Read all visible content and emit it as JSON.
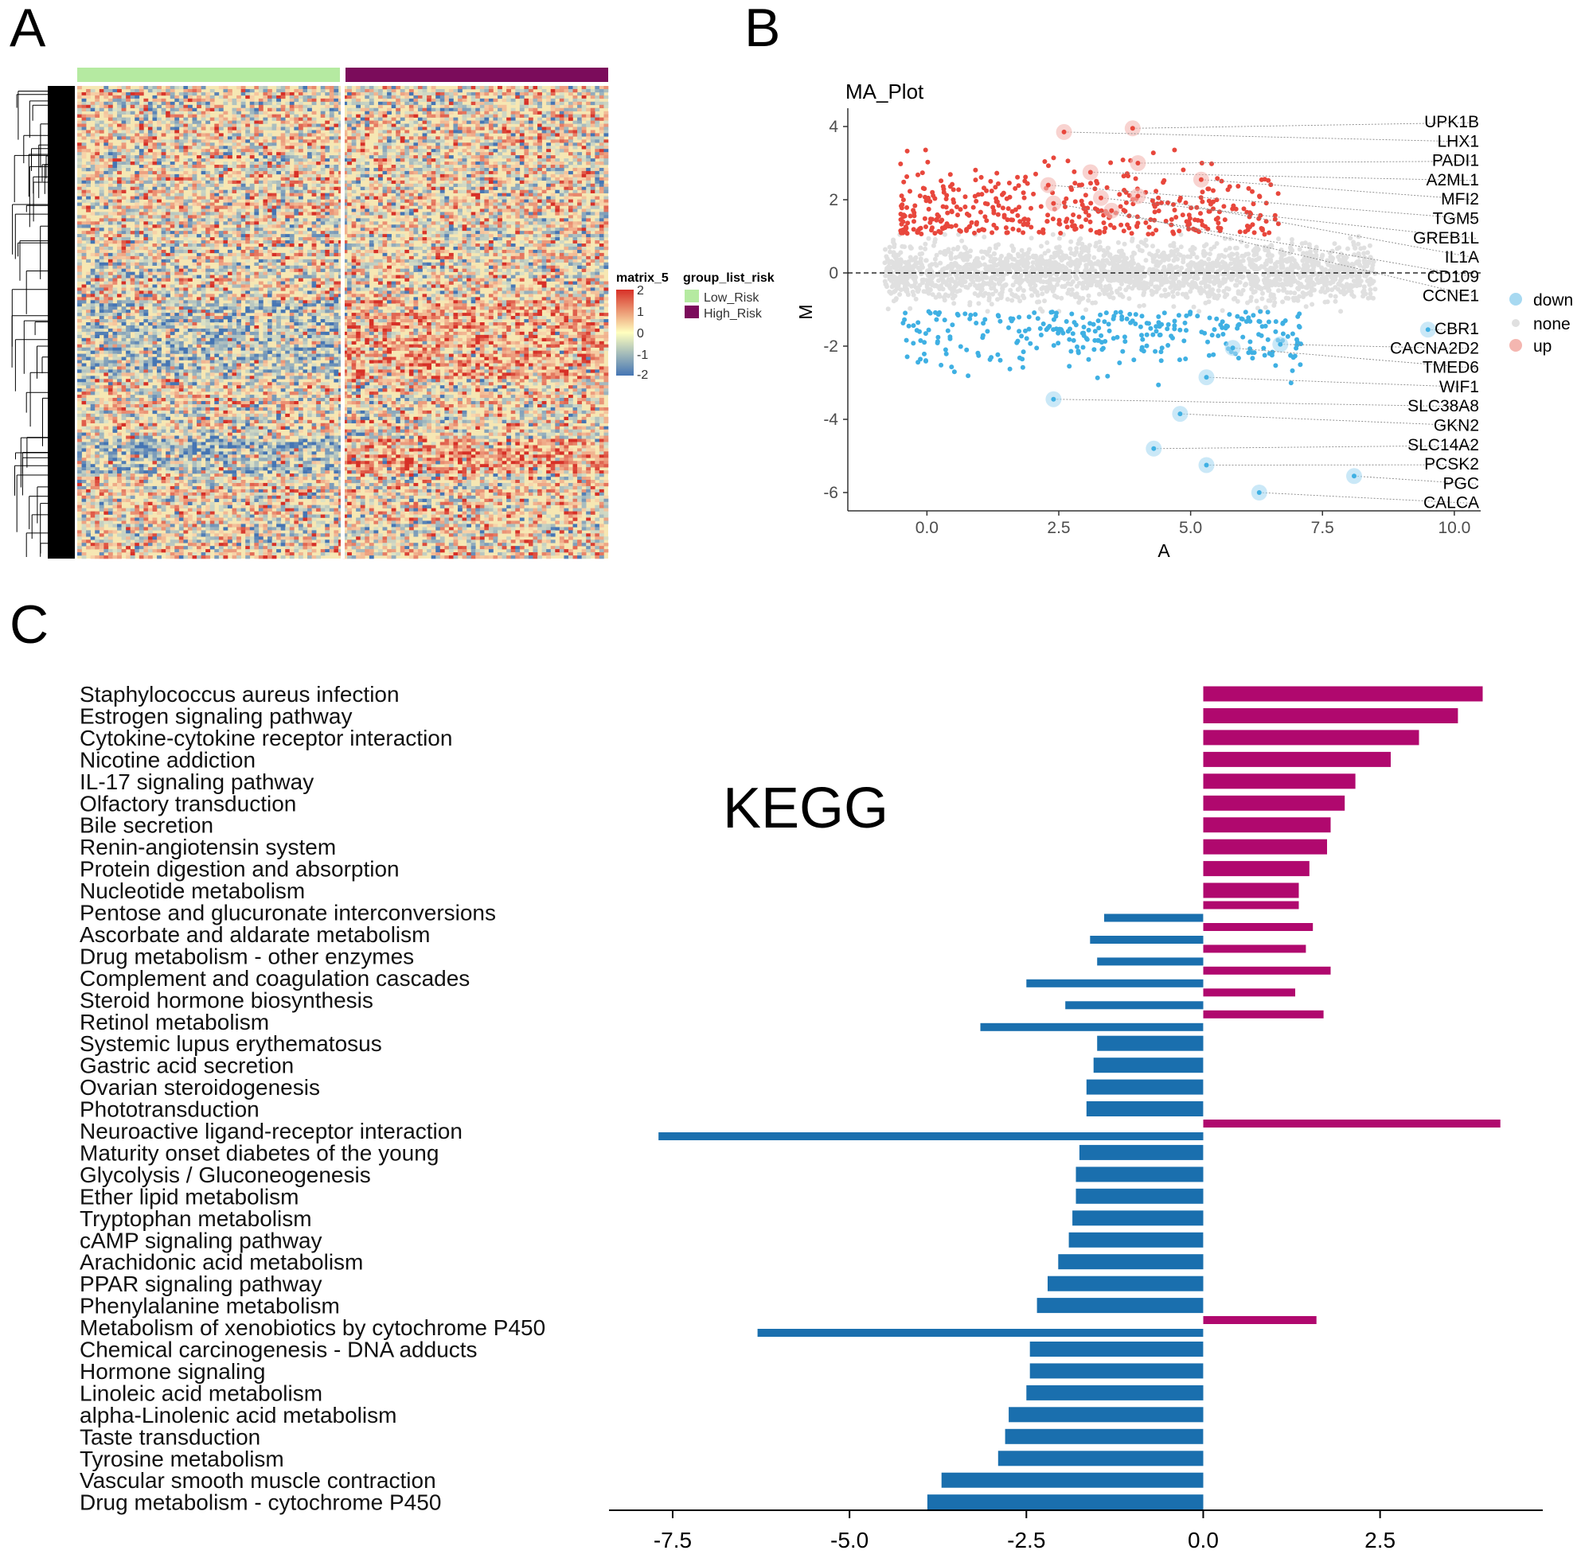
{
  "panels": {
    "a": "A",
    "b": "B",
    "c": "C"
  },
  "heatmap": {
    "legend_title": "matrix_5",
    "scale_ticks": [
      "2",
      "1",
      "0",
      "-1",
      "-2"
    ],
    "scale_colors": {
      "high": "#d73027",
      "mid": "#ffffbf",
      "low": "#4575b4"
    },
    "group_title": "group_list_risk",
    "groups": [
      {
        "name": "Low_Risk",
        "color": "#b5eaa1"
      },
      {
        "name": "High_Risk",
        "color": "#7b0c5b"
      }
    ]
  },
  "chart_data": [
    {
      "type": "scatter",
      "title": "MA_Plot",
      "xlabel": "A",
      "ylabel": "M",
      "xlim": [
        -1.5,
        10.5
      ],
      "ylim": [
        -6.5,
        4.5
      ],
      "xticks": [
        0.0,
        2.5,
        5.0,
        7.5,
        10.0
      ],
      "xtick_labels": [
        "0.0",
        "2.5",
        "5.0",
        "7.5",
        "10.0"
      ],
      "yticks": [
        -6,
        -4,
        -2,
        0,
        2,
        4
      ],
      "ytick_labels": [
        "-6",
        "-4",
        "-2",
        "0",
        "2",
        "4"
      ],
      "hline": 0,
      "legend": [
        {
          "name": "down",
          "color": "#3fb0e3"
        },
        {
          "name": "none",
          "color": "#e0e0e0"
        },
        {
          "name": "up",
          "color": "#e8473c"
        }
      ],
      "labeled_up": [
        {
          "gene": "UPK1B",
          "a": 3.9,
          "m": 3.95
        },
        {
          "gene": "LHX1",
          "a": 2.6,
          "m": 3.85
        },
        {
          "gene": "PADI1",
          "a": 4.0,
          "m": 3.0
        },
        {
          "gene": "A2ML1",
          "a": 3.1,
          "m": 2.75
        },
        {
          "gene": "MFI2",
          "a": 5.2,
          "m": 2.55
        },
        {
          "gene": "TGM5",
          "a": 2.3,
          "m": 2.4
        },
        {
          "gene": "GREB1L",
          "a": 3.3,
          "m": 2.05
        },
        {
          "gene": "IL1A",
          "a": 4.0,
          "m": 2.1
        },
        {
          "gene": "CD109",
          "a": 2.4,
          "m": 1.9
        },
        {
          "gene": "CCNE1",
          "a": 3.5,
          "m": 1.7
        }
      ],
      "labeled_down": [
        {
          "gene": "CBR1",
          "a": 9.5,
          "m": -1.55
        },
        {
          "gene": "CACNA2D2",
          "a": 6.7,
          "m": -1.95
        },
        {
          "gene": "TMED6",
          "a": 5.8,
          "m": -2.05
        },
        {
          "gene": "WIF1",
          "a": 5.3,
          "m": -2.85
        },
        {
          "gene": "SLC38A8",
          "a": 2.4,
          "m": -3.45
        },
        {
          "gene": "GKN2",
          "a": 4.8,
          "m": -3.85
        },
        {
          "gene": "SLC14A2",
          "a": 4.3,
          "m": -4.8
        },
        {
          "gene": "PCSK2",
          "a": 5.3,
          "m": -5.25
        },
        {
          "gene": "PGC",
          "a": 8.1,
          "m": -5.55
        },
        {
          "gene": "CALCA",
          "a": 6.3,
          "m": -6.0
        }
      ]
    },
    {
      "type": "bar",
      "title": "KEGG",
      "xlim": [
        -8.4,
        4.8
      ],
      "xticks": [
        -7.5,
        -5.0,
        -2.5,
        0.0,
        2.5
      ],
      "xtick_labels": [
        "-7.5",
        "-5.0",
        "-2.5",
        "0.0",
        "2.5"
      ],
      "colors": {
        "up": "#b0086e",
        "down": "#1a6fae"
      },
      "categories": [
        "Staphylococcus aureus infection",
        "Estrogen signaling pathway",
        "Cytokine-cytokine receptor interaction",
        "Nicotine addiction",
        "IL-17 signaling pathway",
        "Olfactory transduction",
        "Bile secretion",
        "Renin-angiotensin system",
        "Protein digestion and absorption",
        "Nucleotide metabolism",
        "Pentose and glucuronate interconversions",
        "Ascorbate and aldarate metabolism",
        "Drug metabolism - other enzymes",
        "Complement and coagulation cascades",
        "Steroid hormone biosynthesis",
        "Retinol metabolism",
        "Systemic lupus erythematosus",
        "Gastric acid secretion",
        "Ovarian steroidogenesis",
        "Phototransduction",
        "Neuroactive ligand-receptor interaction",
        "Maturity onset diabetes of the young",
        "Glycolysis / Gluconeogenesis",
        "Ether lipid metabolism",
        "Tryptophan metabolism",
        "cAMP signaling pathway",
        "Arachidonic acid metabolism",
        "PPAR signaling pathway",
        "Phenylalanine metabolism",
        "Metabolism of xenobiotics by cytochrome P450",
        "Chemical carcinogenesis - DNA adducts",
        "Hormone signaling",
        "Linoleic acid metabolism",
        "alpha-Linolenic acid metabolism",
        "Taste transduction",
        "Tyrosine metabolism",
        "Vascular smooth muscle contraction",
        "Drug metabolism - cytochrome P450"
      ],
      "up_values": [
        3.95,
        3.6,
        3.05,
        2.65,
        2.15,
        2.0,
        1.8,
        1.75,
        1.5,
        1.35,
        1.35,
        1.55,
        1.45,
        1.8,
        1.3,
        1.7,
        null,
        null,
        null,
        null,
        4.2,
        null,
        null,
        null,
        null,
        null,
        null,
        null,
        null,
        1.6,
        null,
        null,
        null,
        null,
        null,
        null,
        null,
        null
      ],
      "down_values": [
        null,
        null,
        null,
        null,
        null,
        null,
        null,
        null,
        null,
        null,
        -1.4,
        -1.6,
        -1.5,
        -2.5,
        -1.95,
        -3.15,
        -1.5,
        -1.55,
        -1.65,
        -1.65,
        -7.7,
        -1.75,
        -1.8,
        -1.8,
        -1.85,
        -1.9,
        -2.05,
        -2.2,
        -2.35,
        -6.3,
        -2.45,
        -2.45,
        -2.5,
        -2.75,
        -2.8,
        -2.9,
        -3.7,
        -3.9
      ]
    }
  ]
}
